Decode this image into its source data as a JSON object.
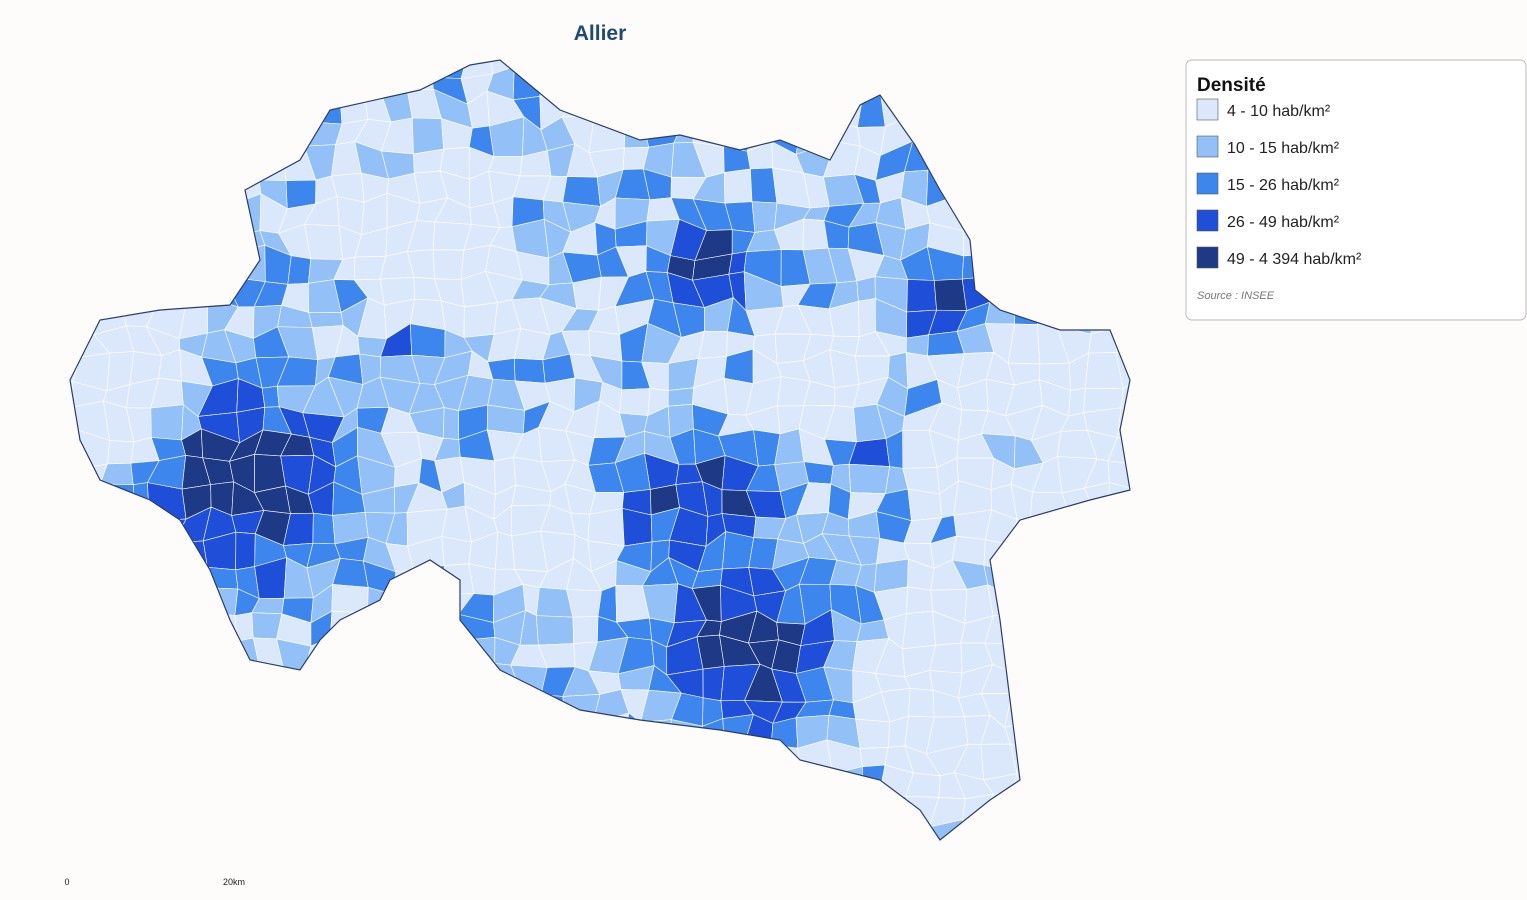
{
  "title": "Allier",
  "legend": {
    "title": "Densité",
    "items": [
      {
        "label": "4 - 10 hab/km²",
        "color": "#dbe8fb"
      },
      {
        "label": "10 - 15 hab/km²",
        "color": "#92c0f7"
      },
      {
        "label": "15 - 26 hab/km²",
        "color": "#3d86ee"
      },
      {
        "label": "26 - 49 hab/km²",
        "color": "#1f4fd8"
      },
      {
        "label": "49 - 4 394 hab/km²",
        "color": "#1e3a86"
      }
    ],
    "source": "Source : INSEE"
  },
  "scale": {
    "start": "0",
    "end": "20km"
  }
}
